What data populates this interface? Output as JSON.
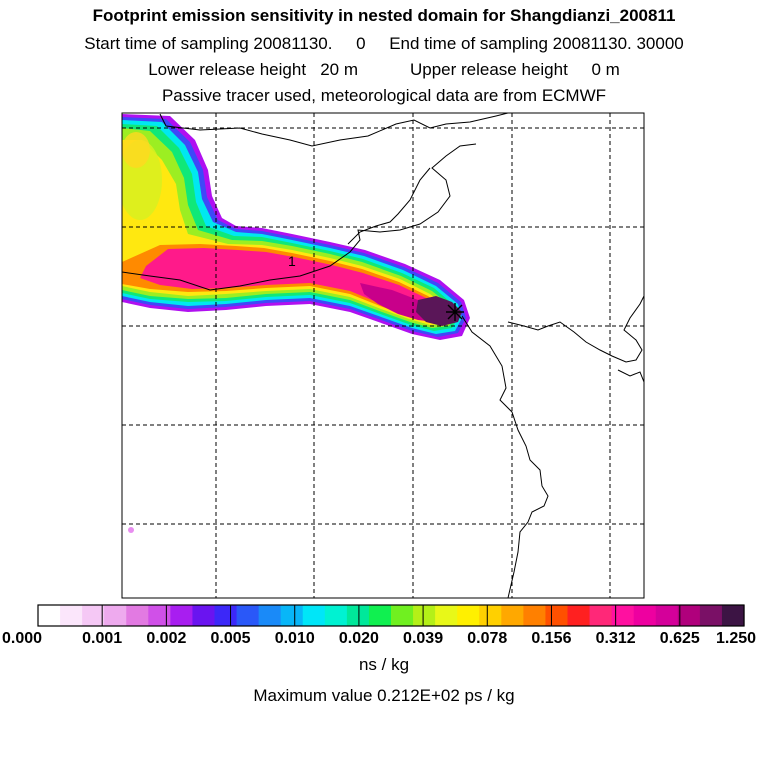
{
  "title": "Footprint emission sensitivity in nested domain for Shangdianzi_200811",
  "sampling": {
    "start_label": "Start time of sampling 20081130.",
    "start_value": "0",
    "end_label": "End time of sampling 20081130. 30000"
  },
  "release": {
    "lower_label": "Lower release height",
    "lower_value": "20 m",
    "upper_label": "Upper release height",
    "upper_value": "0 m"
  },
  "tracer_info": "Passive tracer used, meteorological data are from ECMWF",
  "map": {
    "contour_label": "1",
    "receptor_marker": "station-cross"
  },
  "colorbar": {
    "ticks": [
      "0.000",
      "0.001",
      "0.002",
      "0.005",
      "0.010",
      "0.020",
      "0.039",
      "0.078",
      "0.156",
      "0.312",
      "0.625",
      "1.250"
    ],
    "colors": [
      "#ffffff",
      "#fbe6fb",
      "#f5c8f5",
      "#eeaaee",
      "#e27ae2",
      "#d050e8",
      "#a81ef0",
      "#6a14f0",
      "#3c28f8",
      "#2a58f8",
      "#1a8af8",
      "#08b6f8",
      "#00e6f8",
      "#00f2d2",
      "#00e89a",
      "#10f050",
      "#70f020",
      "#b4f018",
      "#e8f818",
      "#fff000",
      "#ffd000",
      "#ffa800",
      "#ff8000",
      "#ff5000",
      "#ff2020",
      "#ff2878",
      "#ff10a0",
      "#ee00a0",
      "#d4009a",
      "#b0007c",
      "#7a1066",
      "#3c1444"
    ],
    "units": "ns / kg"
  },
  "max_value_text": "Maximum value  0.212E+02 ps / kg"
}
